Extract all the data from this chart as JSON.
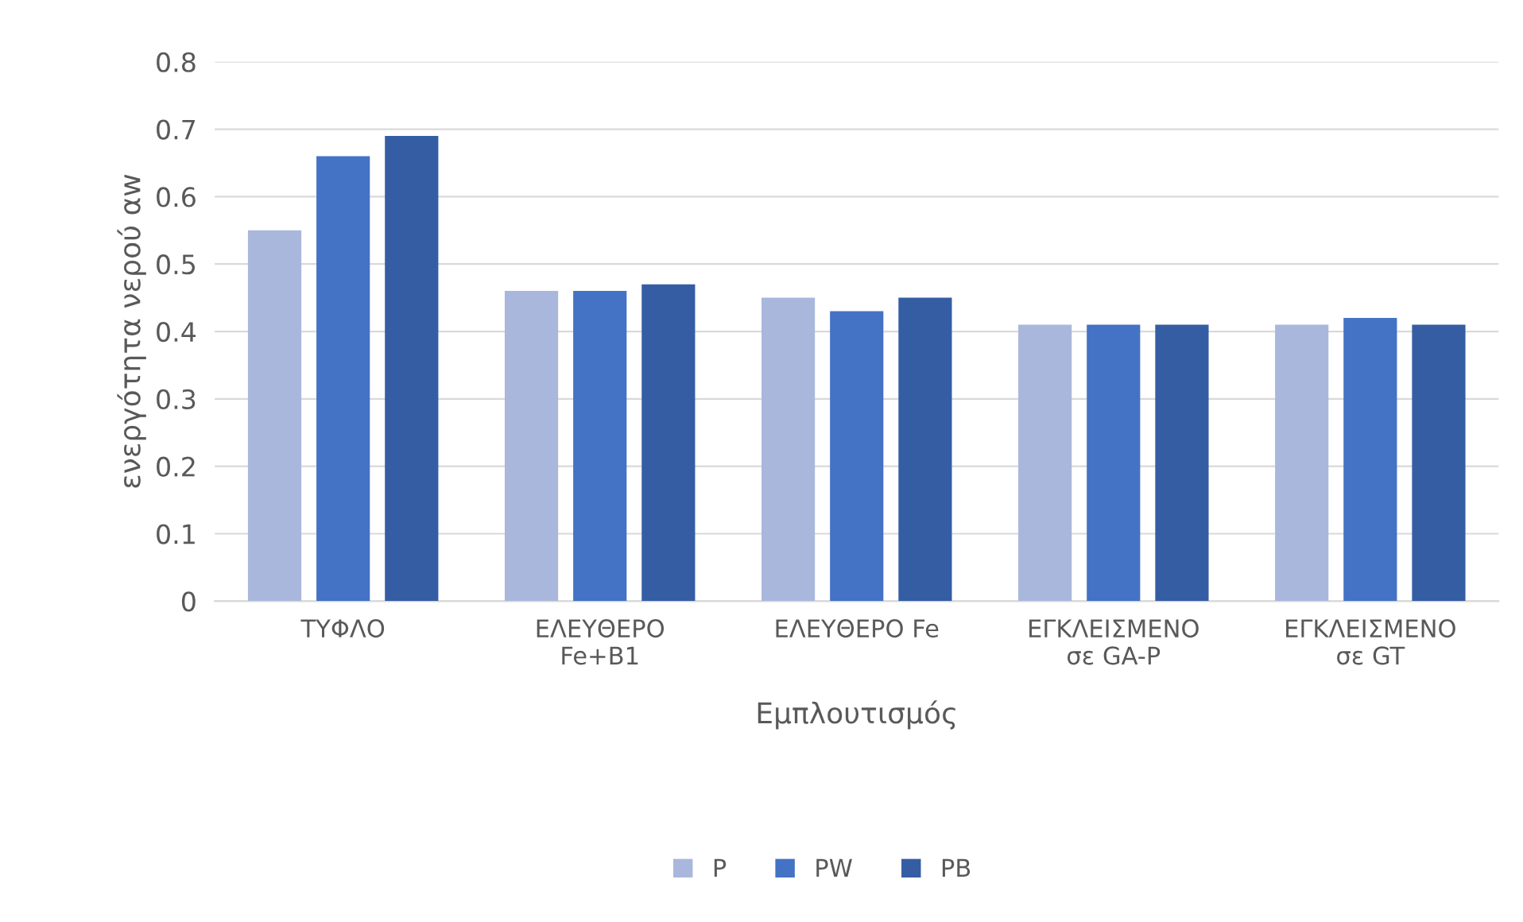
{
  "chart_data": {
    "type": "bar",
    "xlabel": "Εμπλουτισμός",
    "ylabel": "ενεργότητα νερού αw",
    "categories": [
      "ΤΥΦΛΟ",
      "ΕΛΕΥΘΕΡΟ\nFe+B1",
      "ΕΛΕΥΘΕΡΟ Fe",
      "ΕΓΚΛΕΙΣΜΕΝΟ\nσε GA-P",
      "ΕΓΚΛΕΙΣΜΕΝΟ\nσε GT"
    ],
    "series": [
      {
        "name": "P",
        "color": "#a9b7dc",
        "values": [
          0.55,
          0.46,
          0.45,
          0.41,
          0.41
        ]
      },
      {
        "name": "PW",
        "color": "#4472c4",
        "values": [
          0.66,
          0.46,
          0.43,
          0.41,
          0.42
        ]
      },
      {
        "name": "PB",
        "color": "#345da4",
        "values": [
          0.69,
          0.47,
          0.45,
          0.41,
          0.41
        ]
      }
    ],
    "ylim": [
      0,
      0.8
    ],
    "yticks": [
      {
        "value": 0,
        "label": "0"
      },
      0.1,
      0.2,
      0.3,
      0.4,
      0.5,
      0.6,
      0.7,
      0.8
    ],
    "grid": "y",
    "legend": "bottom"
  }
}
